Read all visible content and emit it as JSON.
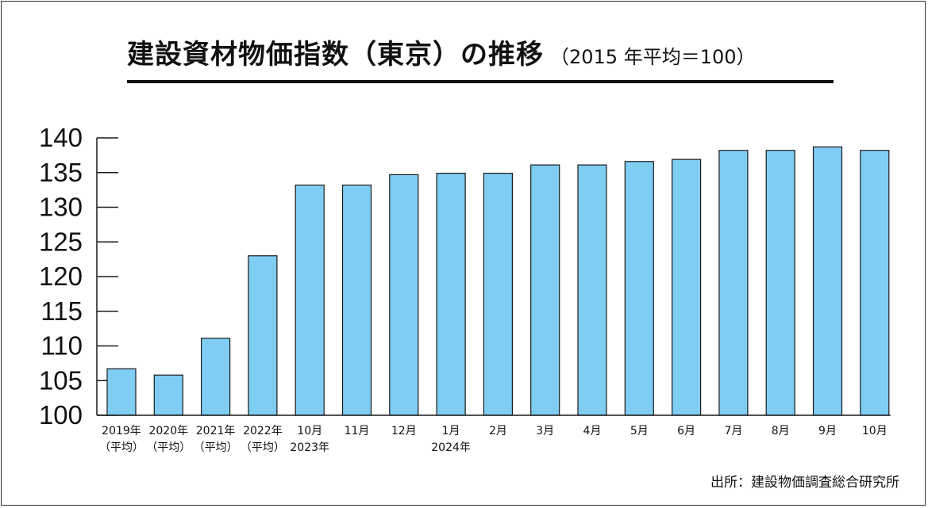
{
  "title": "建設資材物価指数（東京）の推移",
  "subtitle": "（2015 年平均＝100）",
  "source": "出所：建設物価調査総合研究所",
  "colors": {
    "bar_fill": "#7fcdf2",
    "bar_stroke": "#1a1a1a",
    "axis": "#1a1a1a"
  },
  "chart_data": {
    "type": "bar",
    "title": "建設資材物価指数（東京）の推移",
    "subtitle": "（2015 年平均＝100）",
    "xlabel": "",
    "ylabel": "",
    "ylim": [
      100,
      140
    ],
    "yticks": [
      100,
      105,
      110,
      115,
      120,
      125,
      130,
      135,
      140
    ],
    "grid": false,
    "legend": "none",
    "categories": [
      [
        "2019年",
        "（平均）"
      ],
      [
        "2020年",
        "（平均）"
      ],
      [
        "2021年",
        "（平均）"
      ],
      [
        "2022年",
        "（平均）"
      ],
      [
        "10月",
        "2023年"
      ],
      [
        "11月"
      ],
      [
        "12月"
      ],
      [
        "1月",
        "2024年"
      ],
      [
        "2月"
      ],
      [
        "3月"
      ],
      [
        "4月"
      ],
      [
        "5月"
      ],
      [
        "6月"
      ],
      [
        "7月"
      ],
      [
        "8月"
      ],
      [
        "9月"
      ],
      [
        "10月"
      ]
    ],
    "values": [
      106.7,
      105.8,
      111.1,
      123.0,
      133.2,
      133.2,
      134.7,
      134.9,
      134.9,
      136.1,
      136.1,
      136.6,
      136.9,
      138.2,
      138.2,
      138.7,
      138.2
    ]
  }
}
